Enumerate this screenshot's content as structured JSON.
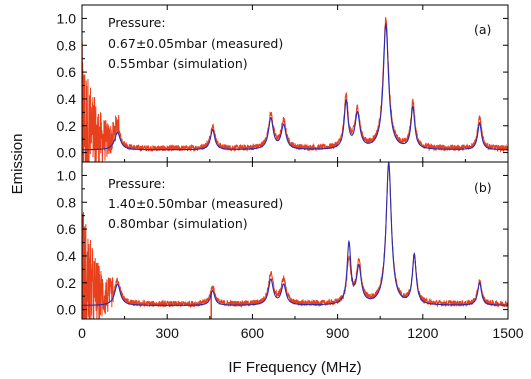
{
  "chart_data": [
    {
      "type": "line",
      "panel_label": "(a)",
      "annotation": [
        "Pressure:",
        "0.67±0.05mbar (measured)",
        "0.55mbar (simulation)"
      ],
      "xlim": [
        0,
        1500
      ],
      "ylim": [
        -0.07,
        1.1
      ],
      "yticks": [
        "0.0",
        "0.2",
        "0.4",
        "0.6",
        "0.8",
        "1.0"
      ],
      "colors": {
        "measured": "#e8401c",
        "simulation": "#2b2bb0"
      },
      "peaks_x_mhz": [
        125,
        460,
        665,
        710,
        930,
        970,
        1070,
        1165,
        1400
      ],
      "simulation_peak_values": [
        0.15,
        0.17,
        0.25,
        0.2,
        0.37,
        0.28,
        0.95,
        0.33,
        0.22
      ],
      "measured_peak_values": [
        0.18,
        0.19,
        0.27,
        0.22,
        0.4,
        0.3,
        0.98,
        0.36,
        0.25
      ],
      "low_freq_noise_range_mhz": [
        0,
        130
      ],
      "baseline": 0.02
    },
    {
      "type": "line",
      "panel_label": "(b)",
      "annotation": [
        "Pressure:",
        "1.40±0.50mbar (measured)",
        "0.80mbar (simulation)"
      ],
      "xlim": [
        0,
        1500
      ],
      "ylim": [
        -0.07,
        1.1
      ],
      "xticks": [
        "0",
        "300",
        "600",
        "900",
        "1200",
        "1500"
      ],
      "yticks": [
        "0.0",
        "0.2",
        "0.4",
        "0.6",
        "0.8",
        "1.0"
      ],
      "xlabel": "IF Frequency (MHz)",
      "colors": {
        "measured": "#e8401c",
        "simulation": "#2b2bb0"
      },
      "peaks_x_mhz": [
        125,
        460,
        665,
        710,
        940,
        975,
        1080,
        1170,
        1400
      ],
      "simulation_peak_values": [
        0.19,
        0.14,
        0.22,
        0.18,
        0.48,
        0.3,
        1.09,
        0.4,
        0.2
      ],
      "measured_peak_values": [
        0.21,
        0.16,
        0.25,
        0.21,
        0.35,
        0.33,
        1.06,
        0.38,
        0.2
      ],
      "low_freq_noise_range_mhz": [
        0,
        110
      ],
      "baseline": 0.03
    }
  ],
  "ylabel": "Emission"
}
